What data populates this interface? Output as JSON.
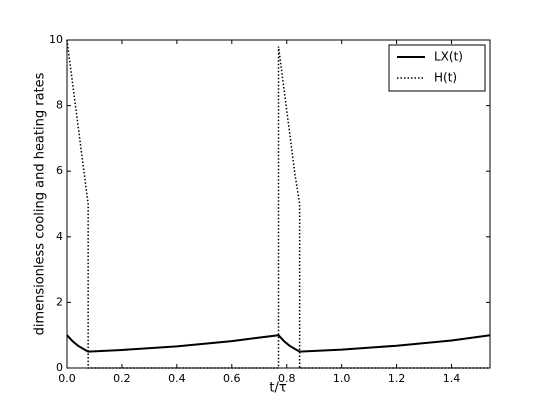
{
  "chart_data": {
    "type": "line",
    "xlabel": "t/τ",
    "ylabel": "dimensionless cooling and heating rates",
    "x": [
      0,
      0.02,
      0.04,
      0.06,
      0.077,
      0.077,
      0.2,
      0.4,
      0.6,
      0.77,
      0.77,
      0.79,
      0.81,
      0.83,
      0.847,
      0.847,
      1.0,
      1.2,
      1.4,
      1.54
    ],
    "series": [
      {
        "name": "LX(t)",
        "color": "#000000",
        "style": "solid",
        "values": [
          1.0,
          0.82,
          0.68,
          0.58,
          0.5,
          0.5,
          0.55,
          0.66,
          0.82,
          1.0,
          1.0,
          0.82,
          0.68,
          0.58,
          0.5,
          0.5,
          0.56,
          0.68,
          0.84,
          1.0
        ]
      },
      {
        "name": "H(t)",
        "color": "#000000",
        "style": "dotted",
        "values": [
          10,
          8.7,
          7.4,
          6.1,
          5.0,
          0,
          0,
          0,
          0,
          0,
          9.8,
          8.5,
          7.2,
          5.9,
          5.0,
          0,
          0,
          0,
          0,
          0
        ]
      }
    ],
    "xlim": [
      0,
      1.54
    ],
    "xticks": [
      {
        "value": 0,
        "label": "0.0"
      },
      0.2,
      0.4,
      0.6,
      0.8,
      {
        "value": 1,
        "label": "1.0"
      },
      1.2,
      1.4
    ],
    "ylim": [
      0,
      10
    ],
    "yticks": [
      0,
      2,
      4,
      6,
      8,
      10
    ],
    "grid": false,
    "legend": "upper right"
  }
}
